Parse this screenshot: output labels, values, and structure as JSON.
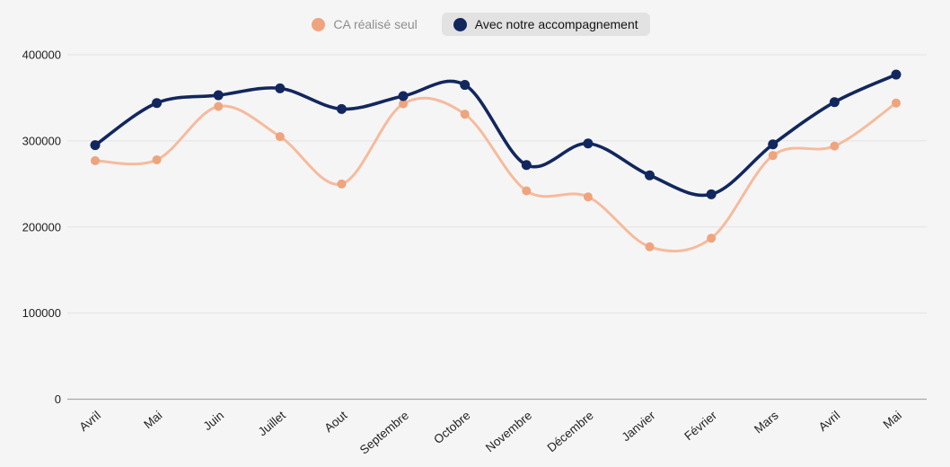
{
  "chart_data": {
    "type": "line",
    "categories": [
      "Avril",
      "Mai",
      "Juin",
      "Juillet",
      "Aout",
      "Septembre",
      "Octobre",
      "Novembre",
      "Décembre",
      "Janvier",
      "Février",
      "Mars",
      "Avril",
      "Mai"
    ],
    "series": [
      {
        "name": "CA réalisé seul",
        "values": [
          277000,
          278000,
          340000,
          305000,
          250000,
          343000,
          331000,
          242000,
          235000,
          177000,
          187000,
          283000,
          294000,
          344000
        ],
        "color": "#f6bb9d",
        "point_color": "#efa47e",
        "line_width": 3,
        "point_radius": 5
      },
      {
        "name": "Avec notre accompagnement",
        "values": [
          295000,
          344000,
          353000,
          361000,
          337000,
          352000,
          365000,
          272000,
          297000,
          260000,
          238000,
          296000,
          345000,
          377000
        ],
        "color": "#12275e",
        "point_color": "#12275e",
        "line_width": 3.6,
        "point_radius": 5.5
      }
    ],
    "title": "",
    "xlabel": "",
    "ylabel": "",
    "ylim": [
      0,
      400000
    ],
    "yticks": [
      {
        "value": 0,
        "label": "0"
      },
      {
        "value": 100000,
        "label": "100000"
      },
      {
        "value": 200000,
        "label": "200000"
      },
      {
        "value": 300000,
        "label": "300000"
      },
      {
        "value": 400000,
        "label": "400000"
      }
    ],
    "grid": true,
    "legend_position": "top-center"
  },
  "legend": {
    "items": [
      {
        "label": "CA réalisé seul",
        "color": "#f0a47e",
        "state": "muted"
      },
      {
        "label": "Avec notre accompagnement",
        "color": "#12275e",
        "state": "active"
      }
    ]
  },
  "colors": {
    "background": "#f5f5f5",
    "gridline": "#e4e4e4",
    "zero_line": "#a8a8a8",
    "axis_text": "#1f1f1f",
    "legend_muted_text": "#8e8e8e",
    "legend_active_bg": "#e2e2e3"
  }
}
